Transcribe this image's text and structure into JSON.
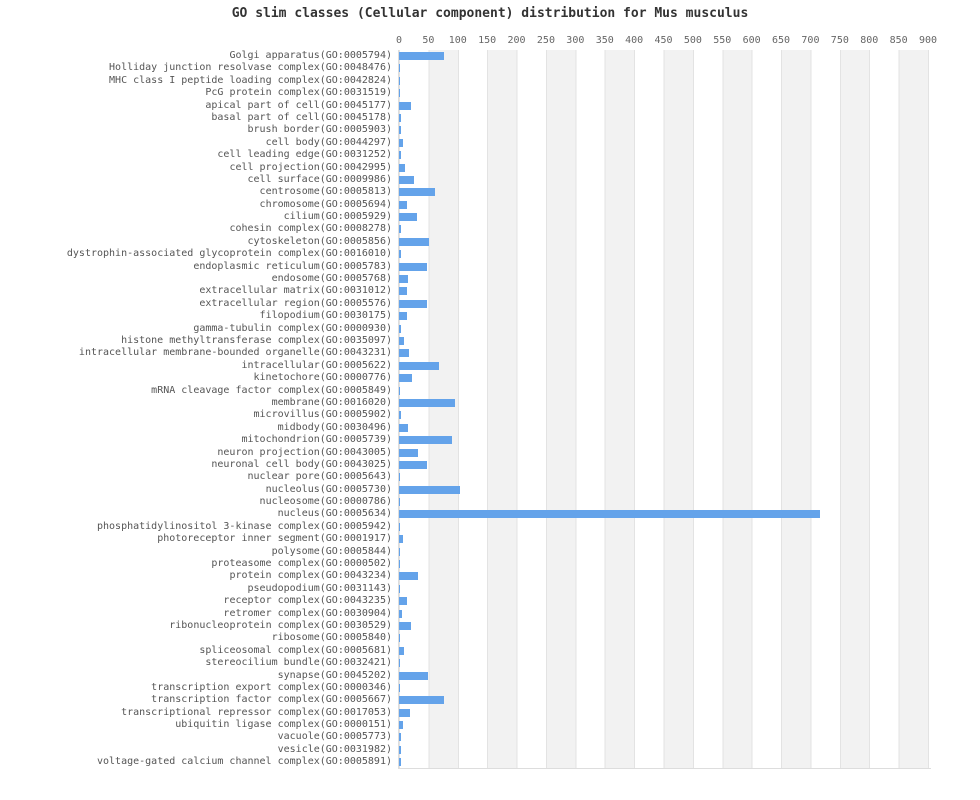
{
  "title": "GO slim classes (Cellular component) distribution for Mus musculus",
  "colors": {
    "bar": "#64a3ea",
    "stripe_alt": "#f2f2f2",
    "gridline": "#e3e3e3",
    "plot_border": "#dddddd",
    "title_text": "#333333",
    "tick_text": "#666666",
    "label_text": "#555555",
    "background": "#ffffff"
  },
  "chart_data": {
    "type": "bar",
    "orientation": "horizontal",
    "title": "GO slim classes (Cellular component) distribution for Mus musculus",
    "xlabel": "",
    "ylabel": "",
    "xlim": [
      0,
      900
    ],
    "x_ticks": [
      0,
      50,
      100,
      150,
      200,
      250,
      300,
      350,
      400,
      450,
      500,
      550,
      600,
      650,
      700,
      750,
      800,
      850,
      900
    ],
    "grid": "vertical-stripes-alternating-50",
    "legend": "none",
    "axis_position": "top",
    "categories": [
      "Golgi apparatus(GO:0005794)",
      "Holliday junction resolvase complex(GO:0048476)",
      "MHC class I peptide loading complex(GO:0042824)",
      "PcG protein complex(GO:0031519)",
      "apical part of cell(GO:0045177)",
      "basal part of cell(GO:0045178)",
      "brush border(GO:0005903)",
      "cell body(GO:0044297)",
      "cell leading edge(GO:0031252)",
      "cell projection(GO:0042995)",
      "cell surface(GO:0009986)",
      "centrosome(GO:0005813)",
      "chromosome(GO:0005694)",
      "cilium(GO:0005929)",
      "cohesin complex(GO:0008278)",
      "cytoskeleton(GO:0005856)",
      "dystrophin-associated glycoprotein complex(GO:0016010)",
      "endoplasmic reticulum(GO:0005783)",
      "endosome(GO:0005768)",
      "extracellular matrix(GO:0031012)",
      "extracellular region(GO:0005576)",
      "filopodium(GO:0030175)",
      "gamma-tubulin complex(GO:0000930)",
      "histone methyltransferase complex(GO:0035097)",
      "intracellular membrane-bounded organelle(GO:0043231)",
      "intracellular(GO:0005622)",
      "kinetochore(GO:0000776)",
      "mRNA cleavage factor complex(GO:0005849)",
      "membrane(GO:0016020)",
      "microvillus(GO:0005902)",
      "midbody(GO:0030496)",
      "mitochondrion(GO:0005739)",
      "neuron projection(GO:0043005)",
      "neuronal cell body(GO:0043025)",
      "nuclear pore(GO:0005643)",
      "nucleolus(GO:0005730)",
      "nucleosome(GO:0000786)",
      "nucleus(GO:0005634)",
      "phosphatidylinositol 3-kinase complex(GO:0005942)",
      "photoreceptor inner segment(GO:0001917)",
      "polysome(GO:0005844)",
      "proteasome complex(GO:0000502)",
      "protein complex(GO:0043234)",
      "pseudopodium(GO:0031143)",
      "receptor complex(GO:0043235)",
      "retromer complex(GO:0030904)",
      "ribonucleoprotein complex(GO:0030529)",
      "ribosome(GO:0005840)",
      "spliceosomal complex(GO:0005681)",
      "stereocilium bundle(GO:0032421)",
      "synapse(GO:0045202)",
      "transcription export complex(GO:0000346)",
      "transcription factor complex(GO:0005667)",
      "transcriptional repressor complex(GO:0017053)",
      "ubiquitin ligase complex(GO:0000151)",
      "vacuole(GO:0005773)",
      "vesicle(GO:0031982)",
      "voltage-gated calcium channel complex(GO:0005891)"
    ],
    "values": [
      76,
      2,
      2,
      2,
      20,
      3,
      3,
      7,
      4,
      11,
      25,
      62,
      13,
      31,
      3,
      51,
      3,
      48,
      16,
      14,
      47,
      13,
      3,
      8,
      17,
      68,
      22,
      2,
      96,
      4,
      15,
      91,
      32,
      48,
      2,
      103,
      2,
      716,
      2,
      6,
      2,
      2,
      32,
      2,
      14,
      5,
      20,
      2,
      8,
      2,
      50,
      2,
      76,
      18,
      6,
      3,
      3,
      4
    ]
  }
}
